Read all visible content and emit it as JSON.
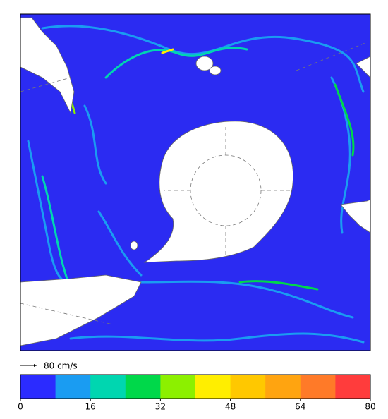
{
  "scale_arrow": {
    "label": "80 cm/s"
  },
  "colorbar": {
    "lim": [
      0,
      80
    ],
    "ticks": [
      0,
      16,
      32,
      48,
      64,
      80
    ],
    "colors": [
      "#2b2bff",
      "#1a9cf2",
      "#00d6b0",
      "#00d84a",
      "#8cf000",
      "#ffee00",
      "#ffc800",
      "#ffa410",
      "#ff7a28",
      "#ff3c3c"
    ]
  }
}
